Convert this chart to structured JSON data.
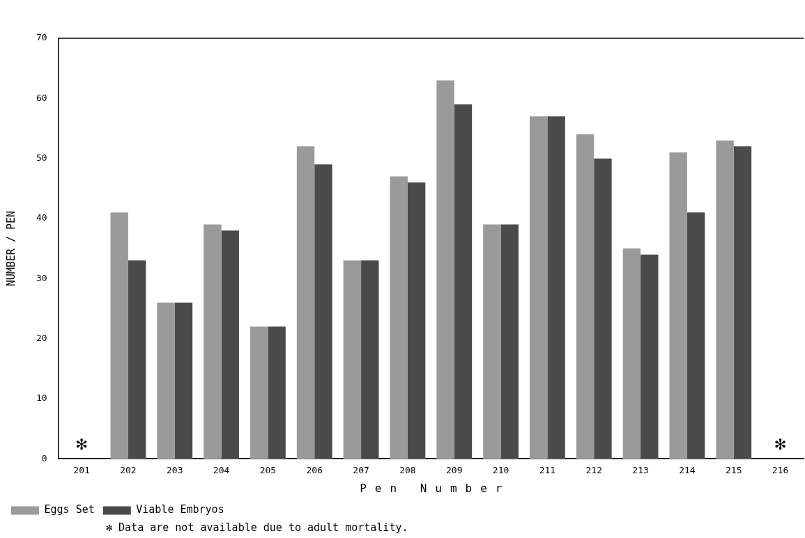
{
  "chart_data": {
    "type": "bar",
    "xlabel": "Pen Number",
    "ylabel": "NUMBER / PEN",
    "categories": [
      "201",
      "202",
      "203",
      "204",
      "205",
      "206",
      "207",
      "208",
      "209",
      "210",
      "211",
      "212",
      "213",
      "214",
      "215",
      "216"
    ],
    "series": [
      {
        "name": "Eggs Set",
        "color": "#9a9a9a",
        "values": [
          null,
          41,
          26,
          39,
          22,
          52,
          33,
          47,
          63,
          39,
          57,
          54,
          35,
          51,
          53,
          null
        ]
      },
      {
        "name": "Viable Embryos",
        "color": "#4a4a4a",
        "values": [
          null,
          33,
          26,
          38,
          22,
          49,
          33,
          46,
          59,
          39,
          57,
          50,
          34,
          41,
          52,
          null
        ]
      }
    ],
    "ylim": [
      0,
      70
    ],
    "yticks": [
      0,
      10,
      20,
      30,
      40,
      50,
      60,
      70
    ],
    "grid": false,
    "legend": "bottom",
    "annotations": [
      "✻",
      "✻",
      "✻ Data are not available due to adult mortality."
    ]
  }
}
